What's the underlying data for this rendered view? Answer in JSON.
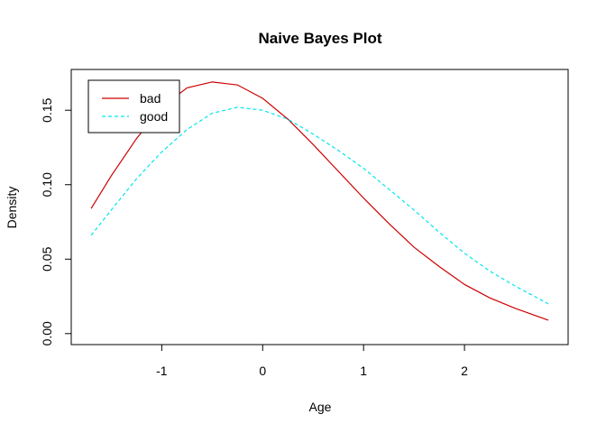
{
  "chart_data": {
    "type": "line",
    "title": "Naive Bayes Plot",
    "xlabel": "Age",
    "ylabel": "Density",
    "xlim": [
      -1.7,
      2.83
    ],
    "ylim": [
      0.0,
      0.17
    ],
    "x_ticks": [
      {
        "value": -1,
        "label": "-1"
      },
      {
        "value": 0,
        "label": "0"
      },
      {
        "value": 1,
        "label": "1"
      },
      {
        "value": 2,
        "label": "2"
      }
    ],
    "y_ticks": [
      {
        "value": 0.0,
        "label": "0.00"
      },
      {
        "value": 0.05,
        "label": "0.05"
      },
      {
        "value": 0.1,
        "label": "0.10"
      },
      {
        "value": 0.15,
        "label": "0.15"
      }
    ],
    "grid": false,
    "legend_position": "top-left",
    "series": [
      {
        "name": "bad",
        "color": "#cc0000",
        "dash": "solid",
        "x": [
          -1.7,
          -1.5,
          -1.25,
          -1.0,
          -0.75,
          -0.5,
          -0.25,
          0.0,
          0.25,
          0.5,
          0.75,
          1.0,
          1.25,
          1.5,
          1.75,
          2.0,
          2.25,
          2.5,
          2.83
        ],
        "y": [
          0.084,
          0.106,
          0.131,
          0.152,
          0.165,
          0.169,
          0.167,
          0.158,
          0.144,
          0.127,
          0.109,
          0.091,
          0.074,
          0.058,
          0.045,
          0.033,
          0.024,
          0.017,
          0.009
        ]
      },
      {
        "name": "good",
        "color": "#00e5ee",
        "dash": "dashed",
        "x": [
          -1.7,
          -1.5,
          -1.25,
          -1.0,
          -0.75,
          -0.5,
          -0.25,
          0.0,
          0.25,
          0.5,
          0.75,
          1.0,
          1.25,
          1.5,
          1.75,
          2.0,
          2.25,
          2.5,
          2.83
        ],
        "y": [
          0.066,
          0.083,
          0.104,
          0.122,
          0.137,
          0.148,
          0.152,
          0.15,
          0.144,
          0.134,
          0.123,
          0.111,
          0.097,
          0.083,
          0.068,
          0.054,
          0.042,
          0.032,
          0.02
        ]
      }
    ]
  }
}
